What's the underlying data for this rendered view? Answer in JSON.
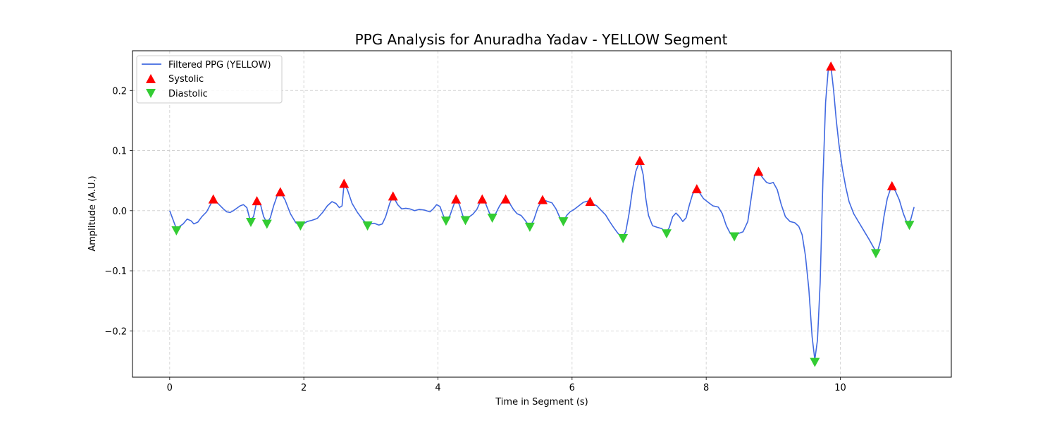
{
  "chart_data": {
    "type": "line",
    "title": "PPG Analysis for Anuradha Yadav - YELLOW Segment",
    "xlabel": "Time in Segment (s)",
    "ylabel": "Amplitude (A.U.)",
    "xlim": [
      -0.555,
      11.655
    ],
    "ylim": [
      -0.277,
      0.266
    ],
    "x_ticks": [
      0,
      2,
      4,
      6,
      8,
      10
    ],
    "x_tick_labels": [
      "0",
      "2",
      "4",
      "6",
      "8",
      "10"
    ],
    "y_ticks": [
      -0.2,
      -0.1,
      0.0,
      0.1,
      0.2
    ],
    "y_tick_labels": [
      "−0.2",
      "−0.1",
      "0.0",
      "0.1",
      "0.2"
    ],
    "grid": true,
    "legend_position": "top-left",
    "series": [
      {
        "name": "Filtered PPG (YELLOW)",
        "kind": "line",
        "color": "#4169e1",
        "points": [
          [
            0.0,
            0.0
          ],
          [
            0.1,
            -0.03
          ],
          [
            0.2,
            -0.022
          ],
          [
            0.26,
            -0.014
          ],
          [
            0.32,
            -0.017
          ],
          [
            0.36,
            -0.022
          ],
          [
            0.42,
            -0.019
          ],
          [
            0.48,
            -0.01
          ],
          [
            0.55,
            -0.002
          ],
          [
            0.65,
            0.019
          ],
          [
            0.72,
            0.012
          ],
          [
            0.8,
            0.003
          ],
          [
            0.85,
            -0.002
          ],
          [
            0.9,
            -0.003
          ],
          [
            0.95,
            0.0
          ],
          [
            1.0,
            0.004
          ],
          [
            1.05,
            0.008
          ],
          [
            1.1,
            0.01
          ],
          [
            1.15,
            0.005
          ],
          [
            1.2,
            -0.016
          ],
          [
            1.25,
            -0.01
          ],
          [
            1.3,
            0.016
          ],
          [
            1.35,
            0.012
          ],
          [
            1.4,
            -0.01
          ],
          [
            1.45,
            -0.02
          ],
          [
            1.5,
            -0.012
          ],
          [
            1.55,
            0.008
          ],
          [
            1.6,
            0.024
          ],
          [
            1.65,
            0.031
          ],
          [
            1.72,
            0.018
          ],
          [
            1.8,
            -0.005
          ],
          [
            1.88,
            -0.02
          ],
          [
            1.95,
            -0.025
          ],
          [
            2.05,
            -0.018
          ],
          [
            2.12,
            -0.016
          ],
          [
            2.2,
            -0.013
          ],
          [
            2.28,
            -0.003
          ],
          [
            2.35,
            0.008
          ],
          [
            2.42,
            0.015
          ],
          [
            2.48,
            0.012
          ],
          [
            2.53,
            0.005
          ],
          [
            2.57,
            0.008
          ],
          [
            2.6,
            0.045
          ],
          [
            2.65,
            0.035
          ],
          [
            2.72,
            0.012
          ],
          [
            2.8,
            -0.003
          ],
          [
            2.88,
            -0.015
          ],
          [
            2.95,
            -0.023
          ],
          [
            3.05,
            -0.021
          ],
          [
            3.12,
            -0.024
          ],
          [
            3.17,
            -0.022
          ],
          [
            3.22,
            -0.01
          ],
          [
            3.28,
            0.012
          ],
          [
            3.33,
            0.024
          ],
          [
            3.4,
            0.01
          ],
          [
            3.46,
            0.003
          ],
          [
            3.52,
            0.004
          ],
          [
            3.58,
            0.003
          ],
          [
            3.65,
            0.0
          ],
          [
            3.72,
            0.002
          ],
          [
            3.8,
            0.001
          ],
          [
            3.88,
            -0.002
          ],
          [
            3.93,
            0.003
          ],
          [
            3.98,
            0.01
          ],
          [
            4.03,
            0.007
          ],
          [
            4.08,
            -0.008
          ],
          [
            4.12,
            -0.017
          ],
          [
            4.18,
            -0.008
          ],
          [
            4.23,
            0.008
          ],
          [
            4.27,
            0.019
          ],
          [
            4.32,
            0.01
          ],
          [
            4.37,
            -0.008
          ],
          [
            4.41,
            -0.016
          ],
          [
            4.47,
            -0.01
          ],
          [
            4.52,
            -0.006
          ],
          [
            4.58,
            0.002
          ],
          [
            4.62,
            0.012
          ],
          [
            4.66,
            0.019
          ],
          [
            4.71,
            0.012
          ],
          [
            4.76,
            -0.002
          ],
          [
            4.81,
            -0.012
          ],
          [
            4.86,
            -0.005
          ],
          [
            4.92,
            0.008
          ],
          [
            4.97,
            0.016
          ],
          [
            5.01,
            0.019
          ],
          [
            5.06,
            0.014
          ],
          [
            5.12,
            0.003
          ],
          [
            5.18,
            -0.005
          ],
          [
            5.24,
            -0.008
          ],
          [
            5.3,
            -0.016
          ],
          [
            5.37,
            -0.027
          ],
          [
            5.43,
            -0.015
          ],
          [
            5.49,
            0.005
          ],
          [
            5.56,
            0.018
          ],
          [
            5.62,
            0.016
          ],
          [
            5.7,
            0.013
          ],
          [
            5.76,
            0.003
          ],
          [
            5.82,
            -0.012
          ],
          [
            5.87,
            -0.018
          ],
          [
            5.92,
            -0.008
          ],
          [
            5.97,
            -0.002
          ],
          [
            6.03,
            0.002
          ],
          [
            6.1,
            0.008
          ],
          [
            6.17,
            0.014
          ],
          [
            6.24,
            0.016
          ],
          [
            6.3,
            0.012
          ],
          [
            6.37,
            0.008
          ],
          [
            6.43,
            0.001
          ],
          [
            6.5,
            -0.007
          ],
          [
            6.56,
            -0.018
          ],
          [
            6.62,
            -0.028
          ],
          [
            6.68,
            -0.037
          ],
          [
            6.75,
            -0.045
          ],
          [
            6.8,
            -0.035
          ],
          [
            6.85,
            -0.005
          ],
          [
            6.9,
            0.035
          ],
          [
            6.95,
            0.065
          ],
          [
            7.01,
            0.083
          ],
          [
            7.06,
            0.06
          ],
          [
            7.1,
            0.02
          ],
          [
            7.14,
            -0.008
          ],
          [
            7.2,
            -0.025
          ],
          [
            7.28,
            -0.028
          ],
          [
            7.34,
            -0.03
          ],
          [
            7.4,
            -0.037
          ],
          [
            7.45,
            -0.028
          ],
          [
            7.5,
            -0.01
          ],
          [
            7.55,
            -0.004
          ],
          [
            7.6,
            -0.01
          ],
          [
            7.65,
            -0.018
          ],
          [
            7.7,
            -0.012
          ],
          [
            7.75,
            0.01
          ],
          [
            7.8,
            0.028
          ],
          [
            7.86,
            0.036
          ],
          [
            7.9,
            0.03
          ],
          [
            7.96,
            0.02
          ],
          [
            8.04,
            0.013
          ],
          [
            8.1,
            0.008
          ],
          [
            8.18,
            0.006
          ],
          [
            8.24,
            -0.005
          ],
          [
            8.3,
            -0.025
          ],
          [
            8.36,
            -0.038
          ],
          [
            8.42,
            -0.042
          ],
          [
            8.48,
            -0.038
          ],
          [
            8.55,
            -0.035
          ],
          [
            8.62,
            -0.018
          ],
          [
            8.68,
            0.028
          ],
          [
            8.72,
            0.058
          ],
          [
            8.78,
            0.065
          ],
          [
            8.84,
            0.055
          ],
          [
            8.9,
            0.047
          ],
          [
            8.95,
            0.045
          ],
          [
            9.0,
            0.047
          ],
          [
            9.06,
            0.035
          ],
          [
            9.12,
            0.01
          ],
          [
            9.18,
            -0.01
          ],
          [
            9.25,
            -0.018
          ],
          [
            9.32,
            -0.02
          ],
          [
            9.38,
            -0.026
          ],
          [
            9.43,
            -0.04
          ],
          [
            9.48,
            -0.075
          ],
          [
            9.53,
            -0.13
          ],
          [
            9.58,
            -0.21
          ],
          [
            9.62,
            -0.248
          ],
          [
            9.66,
            -0.215
          ],
          [
            9.7,
            -0.12
          ],
          [
            9.74,
            0.05
          ],
          [
            9.78,
            0.18
          ],
          [
            9.82,
            0.235
          ],
          [
            9.86,
            0.24
          ],
          [
            9.9,
            0.2
          ],
          [
            9.94,
            0.15
          ],
          [
            9.98,
            0.11
          ],
          [
            10.03,
            0.07
          ],
          [
            10.08,
            0.04
          ],
          [
            10.13,
            0.015
          ],
          [
            10.2,
            -0.005
          ],
          [
            10.28,
            -0.02
          ],
          [
            10.36,
            -0.035
          ],
          [
            10.43,
            -0.048
          ],
          [
            10.5,
            -0.062
          ],
          [
            10.55,
            -0.07
          ],
          [
            10.6,
            -0.05
          ],
          [
            10.65,
            -0.01
          ],
          [
            10.7,
            0.02
          ],
          [
            10.76,
            0.04
          ],
          [
            10.82,
            0.033
          ],
          [
            10.88,
            0.018
          ],
          [
            10.94,
            -0.005
          ],
          [
            11.0,
            -0.022
          ],
          [
            11.05,
            -0.015
          ],
          [
            11.1,
            0.006
          ]
        ]
      },
      {
        "name": "Systolic",
        "kind": "marker-up",
        "color": "#ff0000",
        "points": [
          [
            0.65,
            0.019
          ],
          [
            1.3,
            0.016
          ],
          [
            1.65,
            0.031
          ],
          [
            2.6,
            0.045
          ],
          [
            3.33,
            0.024
          ],
          [
            4.27,
            0.019
          ],
          [
            4.66,
            0.019
          ],
          [
            5.01,
            0.019
          ],
          [
            5.56,
            0.018
          ],
          [
            6.27,
            0.015
          ],
          [
            7.01,
            0.083
          ],
          [
            7.86,
            0.036
          ],
          [
            8.78,
            0.065
          ],
          [
            9.86,
            0.24
          ],
          [
            10.77,
            0.041
          ]
        ]
      },
      {
        "name": "Diastolic",
        "kind": "marker-down",
        "color": "#33cc33",
        "points": [
          [
            0.1,
            -0.033
          ],
          [
            1.21,
            -0.019
          ],
          [
            1.45,
            -0.022
          ],
          [
            1.95,
            -0.025
          ],
          [
            2.95,
            -0.025
          ],
          [
            4.12,
            -0.017
          ],
          [
            4.41,
            -0.016
          ],
          [
            4.81,
            -0.012
          ],
          [
            5.37,
            -0.027
          ],
          [
            5.87,
            -0.018
          ],
          [
            6.76,
            -0.046
          ],
          [
            7.41,
            -0.038
          ],
          [
            8.42,
            -0.043
          ],
          [
            9.62,
            -0.252
          ],
          [
            10.53,
            -0.071
          ],
          [
            11.03,
            -0.024
          ]
        ]
      }
    ]
  }
}
